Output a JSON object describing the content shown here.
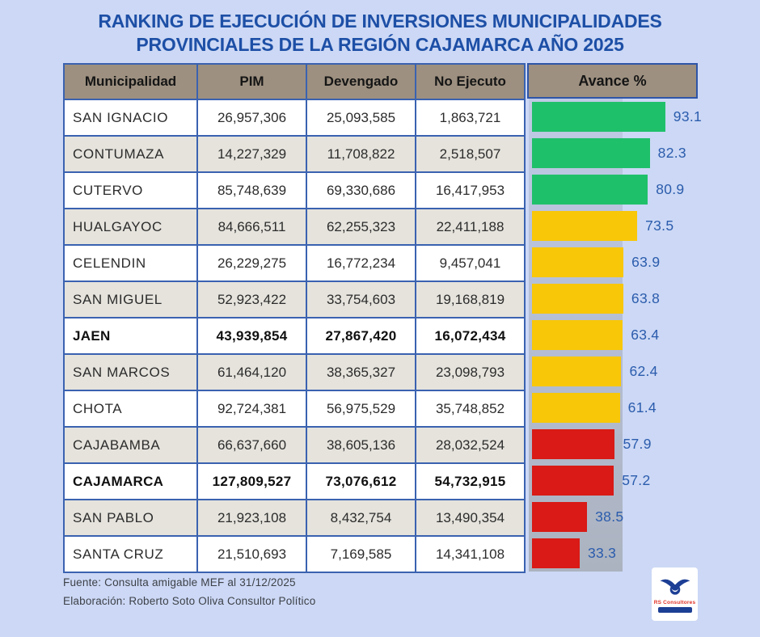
{
  "title": {
    "line1": "RANKING DE EJECUCIÓN DE INVERSIONES MUNICIPALIDADES",
    "line2": "PROVINCIALES DE LA REGIÓN CAJAMARCA AÑO 2025"
  },
  "table": {
    "headers": [
      "Municipalidad",
      "PIM",
      "Devengado",
      "No Ejecuto",
      "Avance %"
    ],
    "rows": [
      {
        "municipalidad": "SAN IGNACIO",
        "pim": "26,957,306",
        "devengado": "25,093,585",
        "no_ejecuto": "1,863,721",
        "avance": 93.1,
        "avance_label": "93.1",
        "color": "green",
        "bold": false
      },
      {
        "municipalidad": "CONTUMAZA",
        "pim": "14,227,329",
        "devengado": "11,708,822",
        "no_ejecuto": "2,518,507",
        "avance": 82.3,
        "avance_label": "82.3",
        "color": "green",
        "bold": false
      },
      {
        "municipalidad": "CUTERVO",
        "pim": "85,748,639",
        "devengado": "69,330,686",
        "no_ejecuto": "16,417,953",
        "avance": 80.9,
        "avance_label": "80.9",
        "color": "green",
        "bold": false
      },
      {
        "municipalidad": "HUALGAYOC",
        "pim": "84,666,511",
        "devengado": "62,255,323",
        "no_ejecuto": "22,411,188",
        "avance": 73.5,
        "avance_label": "73.5",
        "color": "yellow",
        "bold": false
      },
      {
        "municipalidad": "CELENDIN",
        "pim": "26,229,275",
        "devengado": "16,772,234",
        "no_ejecuto": "9,457,041",
        "avance": 63.9,
        "avance_label": "63.9",
        "color": "yellow",
        "bold": false
      },
      {
        "municipalidad": "SAN MIGUEL",
        "pim": "52,923,422",
        "devengado": "33,754,603",
        "no_ejecuto": "19,168,819",
        "avance": 63.8,
        "avance_label": "63.8",
        "color": "yellow",
        "bold": false
      },
      {
        "municipalidad": "JAEN",
        "pim": "43,939,854",
        "devengado": "27,867,420",
        "no_ejecuto": "16,072,434",
        "avance": 63.4,
        "avance_label": "63.4",
        "color": "yellow",
        "bold": true
      },
      {
        "municipalidad": "SAN MARCOS",
        "pim": "61,464,120",
        "devengado": "38,365,327",
        "no_ejecuto": "23,098,793",
        "avance": 62.4,
        "avance_label": "62.4",
        "color": "yellow",
        "bold": false
      },
      {
        "municipalidad": "CHOTA",
        "pim": "92,724,381",
        "devengado": "56,975,529",
        "no_ejecuto": "35,748,852",
        "avance": 61.4,
        "avance_label": "61.4",
        "color": "yellow",
        "bold": false
      },
      {
        "municipalidad": "CAJABAMBA",
        "pim": "66,637,660",
        "devengado": "38,605,136",
        "no_ejecuto": "28,032,524",
        "avance": 57.9,
        "avance_label": "57.9",
        "color": "red",
        "bold": false
      },
      {
        "municipalidad": "CAJAMARCA",
        "pim": "127,809,527",
        "devengado": "73,076,612",
        "no_ejecuto": "54,732,915",
        "avance": 57.2,
        "avance_label": "57.2",
        "color": "red",
        "bold": true
      },
      {
        "municipalidad": "SAN PABLO",
        "pim": "21,923,108",
        "devengado": "8,432,754",
        "no_ejecuto": "13,490,354",
        "avance": 38.5,
        "avance_label": "38.5",
        "color": "red",
        "bold": false
      },
      {
        "municipalidad": "SANTA CRUZ",
        "pim": "21,510,693",
        "devengado": "7,169,585",
        "no_ejecuto": "14,341,108",
        "avance": 33.3,
        "avance_label": "33.3",
        "color": "red",
        "bold": false
      }
    ]
  },
  "colors": {
    "green": "#1fc06a",
    "yellow": "#f8c708",
    "red": "#d91a16",
    "value_label": "#2b5cad",
    "header_bg": "#9d9080",
    "border_blue": "#3a62b0",
    "row_alt": "#e5e3dc",
    "page_bg": "#ccd8f5",
    "title_blue": "#1d4fa6"
  },
  "footer": {
    "fuente": "Fuente: Consulta amigable MEF al 31/12/2025",
    "elaboracion": "Elaboración: Roberto Soto Oliva  Consultor Político"
  },
  "logo": {
    "brand": "RS Consultores"
  },
  "chart_data": {
    "type": "bar",
    "orientation": "horizontal",
    "title": "RANKING DE EJECUCIÓN DE INVERSIONES MUNICIPALIDADES PROVINCIALES DE LA REGIÓN CAJAMARCA AÑO 2025",
    "categories": [
      "SAN IGNACIO",
      "CONTUMAZA",
      "CUTERVO",
      "HUALGAYOC",
      "CELENDIN",
      "SAN MIGUEL",
      "JAEN",
      "SAN MARCOS",
      "CHOTA",
      "CAJABAMBA",
      "CAJAMARCA",
      "SAN PABLO",
      "SANTA CRUZ"
    ],
    "series": [
      {
        "name": "PIM",
        "values": [
          26957306,
          14227329,
          85748639,
          84666511,
          26229275,
          52923422,
          43939854,
          61464120,
          92724381,
          66637660,
          127809527,
          21923108,
          21510693
        ]
      },
      {
        "name": "Devengado",
        "values": [
          25093585,
          11708822,
          69330686,
          62255323,
          16772234,
          33754603,
          27867420,
          38365327,
          56975529,
          38605136,
          73076612,
          8432754,
          7169585
        ]
      },
      {
        "name": "No Ejecuto",
        "values": [
          1863721,
          2518507,
          16417953,
          22411188,
          9457041,
          19168819,
          16072434,
          23098793,
          35748852,
          28032524,
          54732915,
          13490354,
          14341108
        ]
      },
      {
        "name": "Avance %",
        "values": [
          93.1,
          82.3,
          80.9,
          73.5,
          63.9,
          63.8,
          63.4,
          62.4,
          61.4,
          57.9,
          57.2,
          38.5,
          33.3
        ]
      }
    ],
    "bar_colors": [
      "#1fc06a",
      "#1fc06a",
      "#1fc06a",
      "#f8c708",
      "#f8c708",
      "#f8c708",
      "#f8c708",
      "#f8c708",
      "#f8c708",
      "#d91a16",
      "#d91a16",
      "#d91a16",
      "#d91a16"
    ],
    "xlim": [
      0,
      100
    ],
    "grid": false,
    "legend": false,
    "data_labels": true
  }
}
